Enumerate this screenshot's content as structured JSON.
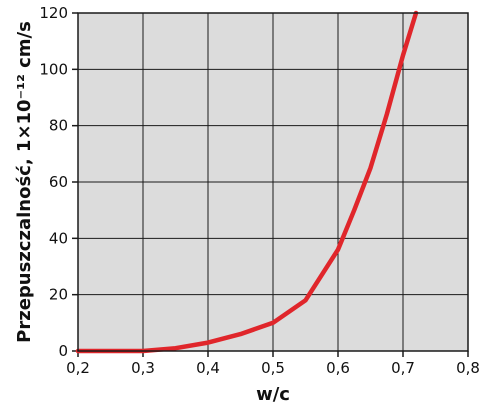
{
  "chart_data": {
    "type": "line",
    "xlabel": "w/c",
    "ylabel": "Przepuszczalność, 1×10⁻¹² cm/s",
    "xlim": [
      0.2,
      0.8
    ],
    "ylim": [
      0,
      120
    ],
    "x_ticks": [
      "0,2",
      "0,3",
      "0,4",
      "0,5",
      "0,6",
      "0,7",
      "0,8"
    ],
    "y_ticks": [
      "0",
      "20",
      "40",
      "60",
      "80",
      "100",
      "120"
    ],
    "x_tick_values": [
      0.2,
      0.3,
      0.4,
      0.5,
      0.6,
      0.7,
      0.8
    ],
    "y_tick_values": [
      0,
      20,
      40,
      60,
      80,
      100,
      120
    ],
    "grid": true,
    "plot_background": "#dcdcdc",
    "grid_color": "#1a1a1a",
    "series": [
      {
        "color": "#e0262b",
        "x": [
          0.2,
          0.25,
          0.3,
          0.35,
          0.4,
          0.45,
          0.5,
          0.55,
          0.6,
          0.625,
          0.65,
          0.675,
          0.7,
          0.72
        ],
        "y": [
          0,
          0,
          0,
          1,
          3,
          6,
          10,
          18,
          36,
          50,
          65,
          84,
          105,
          120
        ]
      }
    ]
  }
}
